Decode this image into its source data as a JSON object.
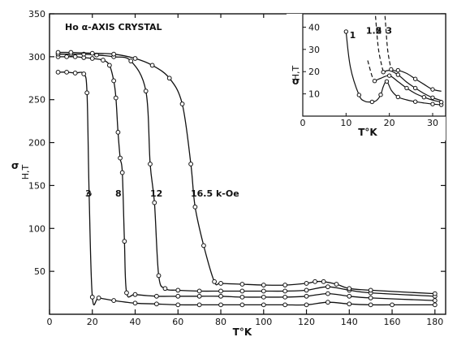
{
  "chart_data": [
    {
      "type": "line",
      "title": "Ho α-AXIS CRYSTAL",
      "xlabel": "T°K",
      "ylabel": "σ",
      "ylabel_sub": "H,T",
      "xlim": [
        0,
        185
      ],
      "ylim": [
        0,
        350
      ],
      "x_ticks": [
        0,
        20,
        40,
        60,
        80,
        100,
        120,
        140,
        160,
        180
      ],
      "y_ticks": [
        50,
        100,
        150,
        200,
        250,
        300,
        350
      ],
      "grid": false,
      "legend": "none",
      "series": [
        {
          "name": "3",
          "x": [
            4,
            8,
            12,
            16,
            17.5,
            18.5,
            20,
            23,
            30,
            40,
            50,
            60,
            70,
            80,
            90,
            100,
            110,
            120,
            130,
            140,
            150,
            160,
            180
          ],
          "y": [
            282,
            282,
            281,
            280,
            258,
            140,
            20,
            19,
            16,
            13,
            12,
            11,
            11,
            11,
            11,
            11,
            11,
            11,
            14,
            12,
            11,
            11,
            11
          ]
        },
        {
          "name": "8",
          "x": [
            4,
            8,
            12,
            16,
            20,
            25,
            28,
            30,
            31,
            32,
            33,
            34,
            35,
            36,
            40,
            50,
            60,
            70,
            80,
            90,
            100,
            110,
            120,
            130,
            140,
            150,
            180
          ],
          "y": [
            300,
            300,
            300,
            299,
            298,
            296,
            290,
            272,
            252,
            212,
            182,
            165,
            85,
            25,
            23,
            21,
            21,
            21,
            21,
            20,
            20,
            20,
            21,
            24,
            21,
            19,
            16
          ]
        },
        {
          "name": "12",
          "x": [
            4,
            10,
            16,
            22,
            30,
            38,
            45,
            47,
            49,
            51,
            54,
            60,
            70,
            80,
            90,
            100,
            110,
            120,
            130,
            140,
            150,
            180
          ],
          "y": [
            303,
            303,
            303,
            302,
            300,
            295,
            260,
            175,
            130,
            45,
            30,
            28,
            27,
            27,
            27,
            27,
            27,
            28,
            32,
            28,
            25,
            21
          ]
        },
        {
          "name": "16.5 k-Oe",
          "x": [
            4,
            10,
            20,
            30,
            40,
            48,
            56,
            62,
            66,
            68,
            72,
            77,
            80,
            90,
            100,
            110,
            120,
            124,
            128,
            134,
            140,
            150,
            180
          ],
          "y": [
            305,
            305,
            304,
            303,
            298,
            290,
            275,
            245,
            175,
            125,
            80,
            38,
            36,
            35,
            34,
            34,
            36,
            38,
            38,
            35,
            30,
            28,
            24
          ]
        }
      ],
      "annotations": [
        "3",
        "8",
        "12",
        "16.5 k-Oe"
      ]
    },
    {
      "type": "line",
      "title": "",
      "xlabel": "T°K",
      "ylabel": "σ",
      "ylabel_sub": "H,T",
      "xlim": [
        0,
        33
      ],
      "ylim": [
        0,
        46
      ],
      "x_ticks": [
        0,
        10,
        20,
        30
      ],
      "y_ticks": [
        10,
        20,
        30,
        40
      ],
      "series": [
        {
          "name": "1",
          "x": [
            10,
            11,
            13,
            14.3,
            16,
            17,
            18,
            18.6,
            19.4,
            20.5,
            22,
            24,
            26,
            28,
            30,
            32
          ],
          "y": [
            38,
            22,
            9.5,
            6.7,
            6.4,
            7,
            9.6,
            13.3,
            15.6,
            11.5,
            8.6,
            7.3,
            6.5,
            5.9,
            5.4,
            5.1
          ]
        },
        {
          "name": "1.5",
          "x": [
            15,
            16,
            16.6,
            18,
            20,
            22,
            24,
            26,
            28,
            30,
            32
          ],
          "y": [
            25,
            18,
            15.8,
            17,
            18.2,
            15.5,
            12.6,
            10.2,
            8.5,
            7.2,
            6.3
          ]
        },
        {
          "name": "2",
          "x": [
            16.8,
            17.5,
            18.6,
            20,
            22,
            24,
            26,
            28,
            30,
            32
          ],
          "y": [
            45,
            30,
            19.8,
            20.5,
            18.6,
            15.3,
            12.6,
            10.2,
            8.3,
            7
          ]
        },
        {
          "name": "3",
          "x": [
            19,
            19.6,
            20.4,
            21.5,
            22,
            24,
            26,
            28,
            30,
            32
          ],
          "y": [
            45,
            30,
            21,
            20.3,
            20.6,
            19.2,
            16.7,
            14.3,
            12,
            11.2
          ]
        }
      ],
      "annotations": [
        "1",
        "1.5",
        "2",
        "3"
      ]
    }
  ]
}
